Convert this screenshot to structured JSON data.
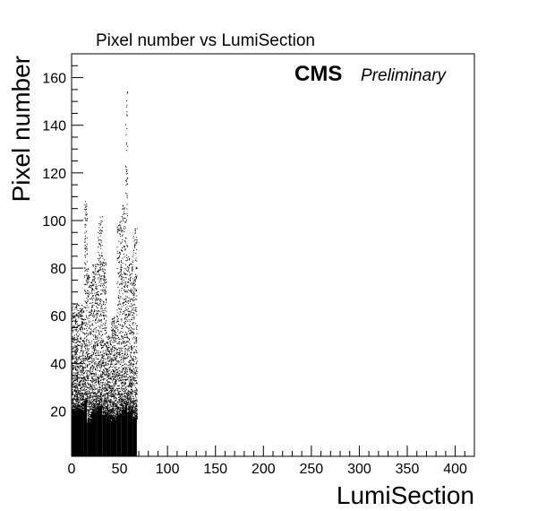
{
  "chart_data": {
    "type": "scatter",
    "title": "Pixel number vs LumiSection",
    "xlabel": "LumiSection",
    "ylabel": "Pixel number",
    "xlim": [
      0,
      420
    ],
    "ylim": [
      1,
      170
    ],
    "xticks": [
      0,
      50,
      100,
      150,
      200,
      250,
      300,
      350,
      400
    ],
    "yticks": [
      20,
      40,
      60,
      80,
      100,
      120,
      140,
      160
    ],
    "grid": false,
    "legend": "none",
    "annotations": {
      "experiment": "CMS",
      "status": "Preliminary"
    },
    "marker_color": "#000000",
    "series": [
      {
        "description_of_columns": "Each entry: [lumisection_start, lumisection_end, dense_upper_pixel_number, max_pixel_number]",
        "bands": [
          [
            0,
            13,
            33,
            65
          ],
          [
            13,
            16,
            40,
            109
          ],
          [
            16,
            21,
            25,
            80
          ],
          [
            21,
            27,
            32,
            82
          ],
          [
            27,
            32,
            36,
            102
          ],
          [
            32,
            36,
            30,
            85
          ],
          [
            36,
            41,
            28,
            52
          ],
          [
            41,
            47,
            26,
            60
          ],
          [
            47,
            52,
            30,
            100
          ],
          [
            52,
            56,
            34,
            107
          ],
          [
            56,
            58,
            38,
            155
          ],
          [
            58,
            64,
            32,
            85
          ],
          [
            64,
            68,
            28,
            97
          ]
        ]
      }
    ]
  }
}
